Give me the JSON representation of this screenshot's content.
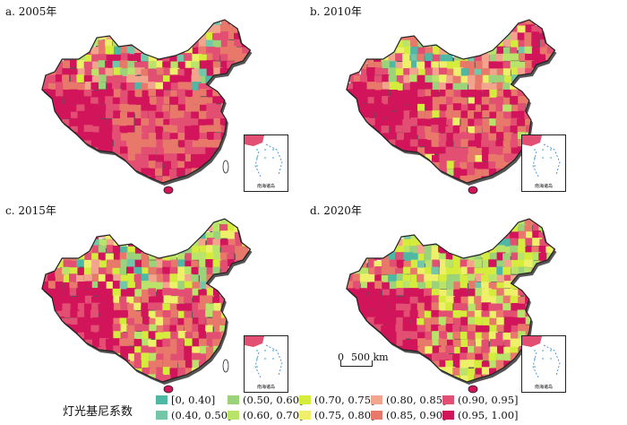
{
  "panels": [
    {
      "label": "a. 2005年"
    },
    {
      "label": "b. 2010年"
    },
    {
      "label": "c. 2015年"
    },
    {
      "label": "d. 2020年"
    }
  ],
  "inset": {
    "caption": "南海诸岛"
  },
  "scale": {
    "zero": "0",
    "distance": "500 km"
  },
  "legend": {
    "title": "灯光基尼系数",
    "items": [
      {
        "label": "[0, 0.40]",
        "color": "#4fb8a5"
      },
      {
        "label": "(0.40, 0.50]",
        "color": "#74c6a8"
      },
      {
        "label": "(0.50, 0.60]",
        "color": "#9bd27a"
      },
      {
        "label": "(0.60, 0.70]",
        "color": "#b9e36a"
      },
      {
        "label": "(0.70, 0.75]",
        "color": "#d6ec3c"
      },
      {
        "label": "(0.75, 0.80]",
        "color": "#eef06a"
      },
      {
        "label": "(0.80, 0.85]",
        "color": "#f2a48c"
      },
      {
        "label": "(0.85, 0.90]",
        "color": "#e8796a"
      },
      {
        "label": "(0.90, 0.95]",
        "color": "#e24f72"
      },
      {
        "label": "(0.95, 1.00]",
        "color": "#d2145a"
      }
    ]
  }
}
